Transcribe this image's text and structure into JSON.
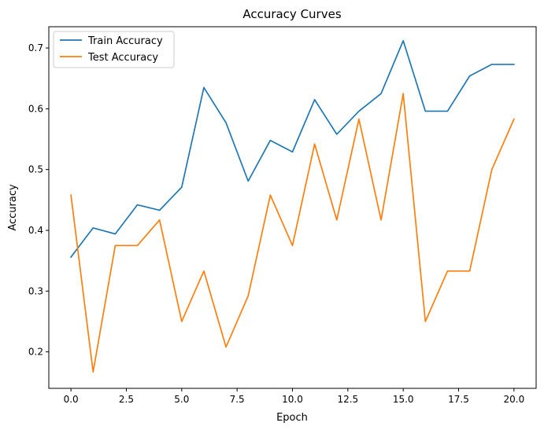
{
  "chart_data": {
    "type": "line",
    "title": "Accuracy Curves",
    "xlabel": "Epoch",
    "ylabel": "Accuracy",
    "xlim": [
      -1,
      21
    ],
    "ylim": [
      0.14,
      0.735
    ],
    "xticks": [
      0.0,
      2.5,
      5.0,
      7.5,
      10.0,
      12.5,
      15.0,
      17.5,
      20.0
    ],
    "xtick_labels": [
      "0.0",
      "2.5",
      "5.0",
      "7.5",
      "10.0",
      "12.5",
      "15.0",
      "17.5",
      "20.0"
    ],
    "yticks": [
      0.2,
      0.3,
      0.4,
      0.5,
      0.6,
      0.7
    ],
    "ytick_labels": [
      "0.2",
      "0.3",
      "0.4",
      "0.5",
      "0.6",
      "0.7"
    ],
    "grid": false,
    "legend_position": "top-left",
    "x": [
      0,
      1,
      2,
      3,
      4,
      5,
      6,
      7,
      8,
      9,
      10,
      11,
      12,
      13,
      14,
      15,
      16,
      17,
      18,
      19,
      20
    ],
    "series": [
      {
        "name": "Train Accuracy",
        "color": "#1f77b4",
        "values": [
          0.356,
          0.404,
          0.394,
          0.442,
          0.433,
          0.471,
          0.635,
          0.577,
          0.481,
          0.548,
          0.529,
          0.615,
          0.558,
          0.596,
          0.625,
          0.712,
          0.596,
          0.596,
          0.654,
          0.673,
          0.673
        ]
      },
      {
        "name": "Test Accuracy",
        "color": "#ff7f0e",
        "values": [
          0.458,
          0.167,
          0.375,
          0.375,
          0.417,
          0.25,
          0.333,
          0.208,
          0.292,
          0.458,
          0.375,
          0.542,
          0.417,
          0.583,
          0.417,
          0.625,
          0.25,
          0.333,
          0.333,
          0.5,
          0.583
        ]
      }
    ]
  }
}
